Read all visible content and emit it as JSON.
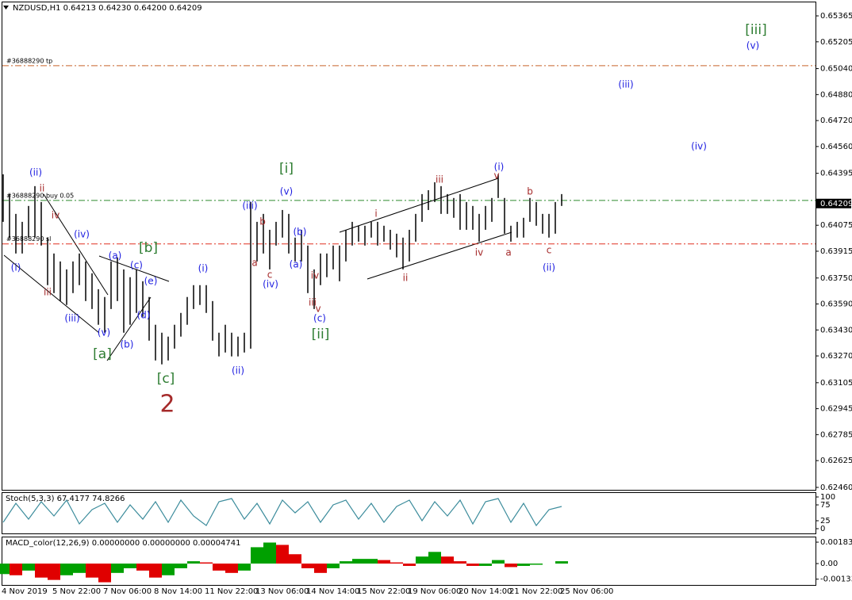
{
  "chart_data": [
    {
      "type": "range",
      "title": "NZDUSD,H1  0.64213 0.64230 0.64200 0.64209",
      "categories": [
        "4 Nov 2019",
        null,
        null,
        null,
        null,
        null,
        null,
        null,
        "5 Nov 22:00",
        null,
        null,
        null,
        null,
        null,
        null,
        null,
        "7 Nov 06:00",
        null,
        null,
        null,
        null,
        null,
        null,
        null,
        "8 Nov 14:00",
        null,
        null,
        null,
        null,
        null,
        null,
        null,
        "11 Nov 22:00",
        null,
        null,
        null,
        null,
        null,
        null,
        null,
        "13 Nov 06:00",
        null,
        null,
        null,
        null,
        null,
        null,
        null,
        "14 Nov 14:00",
        null,
        null,
        null,
        null,
        null,
        null,
        null,
        "15 Nov 22:00",
        null,
        null,
        null,
        null,
        null,
        null,
        null,
        "19 Nov 06:00",
        null,
        null,
        null,
        null,
        null,
        null,
        null,
        "20 Nov 14:00",
        null,
        null,
        null,
        null,
        null,
        null,
        null,
        "21 Nov 22:00",
        null,
        null,
        null,
        null,
        null,
        null,
        null,
        "25 Nov 06:00"
      ],
      "high": [
        0.64389,
        0.64267,
        0.64145,
        0.64096,
        0.64194,
        0.64316,
        0.64218,
        0.63999,
        0.63901,
        0.63852,
        0.63803,
        0.63852,
        0.63901,
        0.63852,
        0.63779,
        0.63681,
        0.63633,
        0.63852,
        0.63877,
        0.63803,
        0.63755,
        0.63803,
        0.6373,
        0.63633,
        0.63462,
        0.63413,
        0.63389,
        0.63462,
        0.63535,
        0.63633,
        0.63706,
        0.63706,
        0.63706,
        0.63608,
        0.63413,
        0.63462,
        0.63413,
        0.63389,
        0.63413,
        0.64218,
        0.64096,
        0.64145,
        0.64047,
        0.64096,
        0.64169,
        0.64145,
        0.63999,
        0.64047,
        0.6395,
        0.63803,
        0.63901,
        0.63901,
        0.6395,
        0.6395,
        0.64047,
        0.64096,
        0.64072,
        0.64072,
        0.64096,
        0.64096,
        0.64072,
        0.64047,
        0.64023,
        0.63999,
        0.64047,
        0.64145,
        0.64267,
        0.64291,
        0.6434,
        0.64316,
        0.64267,
        0.64243,
        0.64267,
        0.64218,
        0.64194,
        0.64145,
        0.64194,
        0.64243,
        0.64389,
        0.64243,
        0.64072,
        0.64096,
        0.64121,
        0.64243,
        0.64218,
        0.64145,
        0.64145,
        0.64218,
        0.64267
      ],
      "low": [
        0.64096,
        0.63999,
        0.63901,
        0.63901,
        0.63999,
        0.63999,
        0.6395,
        0.63706,
        0.63657,
        0.63608,
        0.63584,
        0.63657,
        0.63706,
        0.63608,
        0.63559,
        0.63462,
        0.63413,
        0.63559,
        0.63608,
        0.63413,
        0.63462,
        0.63535,
        0.63511,
        0.63364,
        0.63242,
        0.63218,
        0.63242,
        0.63315,
        0.63389,
        0.63462,
        0.63559,
        0.63584,
        0.63535,
        0.63364,
        0.63267,
        0.63291,
        0.63267,
        0.63267,
        0.63291,
        0.63315,
        0.63852,
        0.63901,
        0.63803,
        0.6395,
        0.63999,
        0.63901,
        0.63852,
        0.63852,
        0.63657,
        0.63559,
        0.63706,
        0.63755,
        0.63803,
        0.6373,
        0.63852,
        0.6395,
        0.63974,
        0.6395,
        0.63999,
        0.6395,
        0.63974,
        0.63925,
        0.63877,
        0.63803,
        0.63852,
        0.63974,
        0.64096,
        0.64169,
        0.64218,
        0.64145,
        0.64145,
        0.64121,
        0.64047,
        0.64047,
        0.64047,
        0.63974,
        0.64047,
        0.64096,
        0.64243,
        0.64023,
        0.63974,
        0.63999,
        0.63999,
        0.64096,
        0.64072,
        0.64023,
        0.63999,
        0.64023,
        0.64194
      ],
      "color": "#000000",
      "ylim": [
        0.62445,
        0.65453
      ],
      "yticks": [
        0.65365,
        0.65205,
        {
          "value": 0.6504,
          "label": "0.65040"
        },
        {
          "value": 0.6488,
          "label": "0.64880"
        },
        {
          "value": 0.6472,
          "label": "0.64720"
        },
        {
          "value": 0.6456,
          "label": "0.64560"
        },
        0.64395,
        0.64075,
        0.63915,
        {
          "value": 0.6375,
          "label": "0.63750"
        },
        {
          "value": 0.6359,
          "label": "0.63590"
        },
        {
          "value": 0.6343,
          "label": "0.63430"
        },
        {
          "value": 0.6327,
          "label": "0.63270"
        },
        0.63105,
        0.62945,
        0.62785,
        0.62625,
        {
          "value": 0.6246,
          "label": "0.62460"
        }
      ],
      "levels": [
        {
          "label": "#36888290 tp",
          "value": 0.65058,
          "color": "#c8642a"
        },
        {
          "label": "#36888290 buy 0.05",
          "value": 0.64228,
          "color": "#2e8b2e"
        },
        {
          "label": "#36888290 sl",
          "value": 0.6396,
          "color": "#e03020"
        }
      ],
      "last_price": 0.64209,
      "annotations": [
        {
          "text": "(ii)",
          "color": "#1e1ee0"
        },
        {
          "text": "(i)",
          "color": "#1e1ee0"
        },
        {
          "text": "(iv)",
          "color": "#1e1ee0"
        },
        {
          "text": "(iii)",
          "color": "#1e1ee0"
        },
        {
          "text": "(v)",
          "color": "#1e1ee0"
        },
        {
          "text": "(a)",
          "color": "#1e1ee0"
        },
        {
          "text": "(b)",
          "color": "#1e1ee0"
        },
        {
          "text": "(c)",
          "color": "#1e1ee0"
        },
        {
          "text": "(d)",
          "color": "#1e1ee0"
        },
        {
          "text": "(e)",
          "color": "#1e1ee0"
        },
        {
          "text": "(i)",
          "color": "#1e1ee0"
        },
        {
          "text": "(ii)",
          "color": "#1e1ee0"
        },
        {
          "text": "(iii)",
          "color": "#1e1ee0"
        },
        {
          "text": "(iv)",
          "color": "#1e1ee0"
        },
        {
          "text": "(v)",
          "color": "#1e1ee0"
        },
        {
          "text": "(b)",
          "color": "#1e1ee0"
        },
        {
          "text": "(a)",
          "color": "#1e1ee0"
        },
        {
          "text": "(c)",
          "color": "#1e1ee0"
        },
        {
          "text": "(i)",
          "color": "#1e1ee0"
        },
        {
          "text": "(ii)",
          "color": "#1e1ee0"
        },
        {
          "text": "(iii)",
          "color": "#1e1ee0"
        },
        {
          "text": "(iv)",
          "color": "#1e1ee0"
        },
        {
          "text": "(v)",
          "color": "#1e1ee0"
        },
        {
          "text": "ii",
          "color": "#a52a2a"
        },
        {
          "text": "iv",
          "color": "#a52a2a"
        },
        {
          "text": "iii",
          "color": "#a52a2a"
        },
        {
          "text": "a",
          "color": "#a52a2a"
        },
        {
          "text": "b",
          "color": "#a52a2a"
        },
        {
          "text": "c",
          "color": "#a52a2a"
        },
        {
          "text": "iv",
          "color": "#a52a2a"
        },
        {
          "text": "iii",
          "color": "#a52a2a"
        },
        {
          "text": "v",
          "color": "#a52a2a"
        },
        {
          "text": "i",
          "color": "#a52a2a"
        },
        {
          "text": "ii",
          "color": "#a52a2a"
        },
        {
          "text": "iii",
          "color": "#a52a2a"
        },
        {
          "text": "iv",
          "color": "#a52a2a"
        },
        {
          "text": "v",
          "color": "#a52a2a"
        },
        {
          "text": "a",
          "color": "#a52a2a"
        },
        {
          "text": "b",
          "color": "#a52a2a"
        },
        {
          "text": "c",
          "color": "#a52a2a"
        },
        {
          "text": "2",
          "color": "#a52a2a"
        },
        {
          "text": "[b]",
          "color": "#2e7d32"
        },
        {
          "text": "[a]",
          "color": "#2e7d32"
        },
        {
          "text": "[c]",
          "color": "#2e7d32"
        },
        {
          "text": "[i]",
          "color": "#2e7d32"
        },
        {
          "text": "[ii]",
          "color": "#2e7d32"
        },
        {
          "text": "[iii]",
          "color": "#2e7d32"
        }
      ]
    },
    {
      "type": "line",
      "title": "Stoch(5,3,3) 67.4177 74.8266",
      "values": [
        20,
        80,
        30,
        85,
        40,
        90,
        15,
        60,
        80,
        20,
        75,
        30,
        85,
        20,
        90,
        40,
        10,
        85,
        95,
        30,
        80,
        15,
        90,
        50,
        85,
        20,
        75,
        90,
        30,
        80,
        20,
        70,
        90,
        25,
        85,
        40,
        90,
        15,
        85,
        95,
        20,
        80,
        10,
        60,
        70
      ],
      "color": "#3c8c9c",
      "ylim": [
        -15,
        115
      ],
      "yticks": [
        100,
        75,
        25,
        0
      ]
    },
    {
      "type": "bar",
      "title": "MACD_color(12,26,9) 0.00000000 0.00000000 0.00004741",
      "values": [
        -0.0009,
        -0.001,
        -0.0006,
        -0.0012,
        -0.0014,
        -0.001,
        -0.0008,
        -0.0012,
        -0.0016,
        -0.0008,
        -0.0004,
        -0.0006,
        -0.0012,
        -0.001,
        -0.0004,
        0.0002,
        0.0001,
        -0.0006,
        -0.0008,
        -0.0006,
        0.0014,
        0.0018,
        0.0016,
        0.0008,
        -0.0004,
        -0.0008,
        -0.0004,
        0.0002,
        0.0004,
        0.0004,
        0.0003,
        0.0001,
        -0.0002,
        0.0006,
        0.001,
        0.0006,
        0.0002,
        -0.0002,
        -0.0002,
        0.0003,
        -0.0003,
        -0.0002,
        -0.0001,
        0,
        0.0002
      ],
      "colors": [
        "#00a000",
        "#e00000"
      ],
      "ylim": [
        -0.00183,
        0.00231
      ],
      "yticks": [
        0.0018331,
        {
          "value": 0,
          "label": "0.00"
        },
        -0.001335
      ]
    }
  ]
}
